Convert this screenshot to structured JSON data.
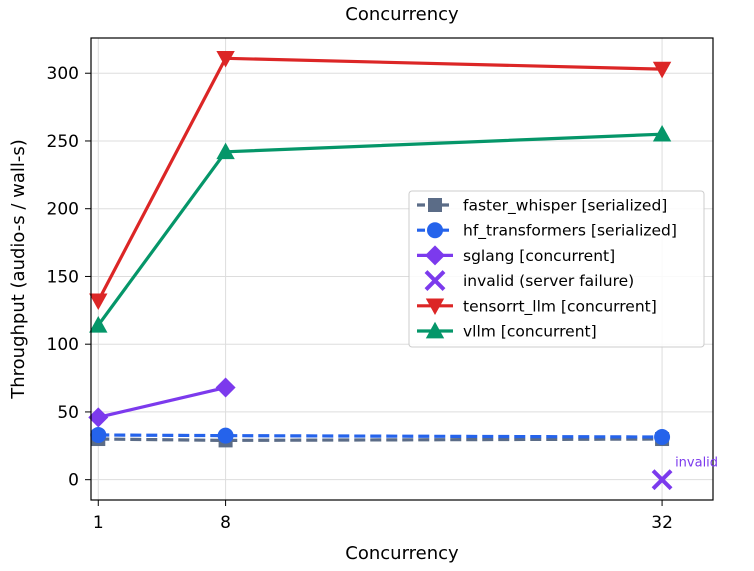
{
  "chart_data": {
    "type": "line",
    "title": "Concurrency",
    "xlabel": "Concurrency",
    "ylabel": "Throughput (audio-s / wall-s)",
    "x_ticks": [
      "1",
      "8",
      "32"
    ],
    "y_ticks": [
      "0",
      "50",
      "100",
      "150",
      "200",
      "250",
      "300"
    ],
    "xlim": [
      0.6,
      34.8
    ],
    "ylim": [
      -15,
      326
    ],
    "grid": true,
    "legend_position": "center-right",
    "series": [
      {
        "name": "faster_whisper [serialized]",
        "color": "#5b6c87",
        "marker": "square",
        "dashed": true,
        "x": [
          1,
          8,
          32
        ],
        "y": [
          30,
          29,
          30
        ]
      },
      {
        "name": "hf_transformers [serialized]",
        "color": "#2563eb",
        "marker": "circle",
        "dashed": true,
        "x": [
          1,
          8,
          32
        ],
        "y": [
          33,
          32.5,
          31.5
        ]
      },
      {
        "name": "sglang [concurrent]",
        "color": "#7c3aed",
        "marker": "diamond",
        "dashed": false,
        "x": [
          1,
          8
        ],
        "y": [
          46,
          68
        ]
      },
      {
        "name": "invalid (server failure)",
        "color": "#7c3aed",
        "marker": "x",
        "dashed": false,
        "lineless": true,
        "x": [
          32
        ],
        "y": [
          0
        ]
      },
      {
        "name": "tensorrt_llm [concurrent]",
        "color": "#dc2626",
        "marker": "triangle-down",
        "dashed": false,
        "x": [
          1,
          8,
          32
        ],
        "y": [
          132,
          311,
          303
        ]
      },
      {
        "name": "vllm [concurrent]",
        "color": "#059669",
        "marker": "triangle-up",
        "dashed": false,
        "x": [
          1,
          8,
          32
        ],
        "y": [
          114,
          242,
          255
        ]
      }
    ],
    "annotations": [
      {
        "text": "invalid",
        "x": 32,
        "y": 0,
        "color": "#7c3aed"
      }
    ]
  }
}
